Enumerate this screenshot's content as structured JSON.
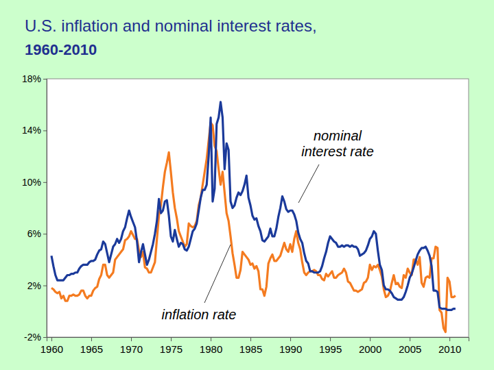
{
  "chart_data": {
    "type": "line",
    "title": "U.S. inflation and nominal interest rates, 1960-2010",
    "x": [
      1960,
      1960.25,
      1960.5,
      1960.75,
      1961,
      1961.25,
      1961.5,
      1961.75,
      1962,
      1962.25,
      1962.5,
      1962.75,
      1963,
      1963.25,
      1963.5,
      1963.75,
      1964,
      1964.25,
      1964.5,
      1964.75,
      1965,
      1965.25,
      1965.5,
      1965.75,
      1966,
      1966.25,
      1966.5,
      1966.75,
      1967,
      1967.25,
      1967.5,
      1967.75,
      1968,
      1968.25,
      1968.5,
      1968.75,
      1969,
      1969.25,
      1969.5,
      1969.75,
      1970,
      1970.25,
      1970.5,
      1970.75,
      1971,
      1971.25,
      1971.5,
      1971.75,
      1972,
      1972.25,
      1972.5,
      1972.75,
      1973,
      1973.25,
      1973.5,
      1973.75,
      1974,
      1974.25,
      1974.5,
      1974.75,
      1975,
      1975.25,
      1975.5,
      1975.75,
      1976,
      1976.25,
      1976.5,
      1976.75,
      1977,
      1977.25,
      1977.5,
      1977.75,
      1978,
      1978.25,
      1978.5,
      1978.75,
      1979,
      1979.25,
      1979.5,
      1979.75,
      1980,
      1980.25,
      1980.5,
      1980.75,
      1981,
      1981.25,
      1981.5,
      1981.75,
      1982,
      1982.25,
      1982.5,
      1982.75,
      1983,
      1983.25,
      1983.5,
      1983.75,
      1984,
      1984.25,
      1984.5,
      1984.75,
      1985,
      1985.25,
      1985.5,
      1985.75,
      1986,
      1986.25,
      1986.5,
      1986.75,
      1987,
      1987.25,
      1987.5,
      1987.75,
      1988,
      1988.25,
      1988.5,
      1988.75,
      1989,
      1989.25,
      1989.5,
      1989.75,
      1990,
      1990.25,
      1990.5,
      1990.75,
      1991,
      1991.25,
      1991.5,
      1991.75,
      1992,
      1992.25,
      1992.5,
      1992.75,
      1993,
      1993.25,
      1993.5,
      1993.75,
      1994,
      1994.25,
      1994.5,
      1994.75,
      1995,
      1995.25,
      1995.5,
      1995.75,
      1996,
      1996.25,
      1996.5,
      1996.75,
      1997,
      1997.25,
      1997.5,
      1997.75,
      1998,
      1998.25,
      1998.5,
      1998.75,
      1999,
      1999.25,
      1999.5,
      1999.75,
      2000,
      2000.25,
      2000.5,
      2000.75,
      2001,
      2001.25,
      2001.5,
      2001.75,
      2002,
      2002.25,
      2002.5,
      2002.75,
      2003,
      2003.25,
      2003.5,
      2003.75,
      2004,
      2004.25,
      2004.5,
      2004.75,
      2005,
      2005.25,
      2005.5,
      2005.75,
      2006,
      2006.25,
      2006.5,
      2006.75,
      2007,
      2007.25,
      2007.5,
      2007.75,
      2008,
      2008.25,
      2008.5,
      2008.75,
      2009,
      2009.25,
      2009.5,
      2009.75,
      2010,
      2010.25,
      2010.5,
      2010.75
    ],
    "series": [
      {
        "name": "nominal interest rate",
        "color": "#1b3a9a",
        "values": [
          4.3,
          3.5,
          2.8,
          2.4,
          2.4,
          2.4,
          2.4,
          2.6,
          2.8,
          2.8,
          2.9,
          2.9,
          3.0,
          3.0,
          3.3,
          3.5,
          3.6,
          3.6,
          3.6,
          3.8,
          3.9,
          3.9,
          4.0,
          4.4,
          4.7,
          4.8,
          5.4,
          5.2,
          4.5,
          3.8,
          4.4,
          5.0,
          5.2,
          5.6,
          5.3,
          5.6,
          6.2,
          6.5,
          7.2,
          7.8,
          7.3,
          6.9,
          6.5,
          5.4,
          3.8,
          4.6,
          5.2,
          4.4,
          3.6,
          4.0,
          4.6,
          5.2,
          6.0,
          7.0,
          8.7,
          7.6,
          7.8,
          8.5,
          8.6,
          7.4,
          5.8,
          5.4,
          6.3,
          5.6,
          5.0,
          5.3,
          5.2,
          4.8,
          4.7,
          5.0,
          5.6,
          6.2,
          6.4,
          6.8,
          7.8,
          8.8,
          9.4,
          9.4,
          9.8,
          12.0,
          15.0,
          8.5,
          9.5,
          14.5,
          15.0,
          16.2,
          15.0,
          11.0,
          13.0,
          12.5,
          8.5,
          8.0,
          8.2,
          8.8,
          9.2,
          9.0,
          9.3,
          9.8,
          10.5,
          8.8,
          8.2,
          7.4,
          7.1,
          7.2,
          6.6,
          6.2,
          5.5,
          5.4,
          5.6,
          5.8,
          6.4,
          5.8,
          5.8,
          6.4,
          7.3,
          8.0,
          8.9,
          8.5,
          7.9,
          7.7,
          7.8,
          7.8,
          7.5,
          7.0,
          6.1,
          5.6,
          5.3,
          4.5,
          3.9,
          3.7,
          3.1,
          3.1,
          3.0,
          3.0,
          3.0,
          3.1,
          3.5,
          4.1,
          4.6,
          5.3,
          5.8,
          5.6,
          5.4,
          5.3,
          5.0,
          5.0,
          5.1,
          5.0,
          5.1,
          5.1,
          5.0,
          5.1,
          5.0,
          5.0,
          4.8,
          4.3,
          4.4,
          4.5,
          4.7,
          5.1,
          5.6,
          5.8,
          6.2,
          6.0,
          4.7,
          3.6,
          3.2,
          2.0,
          1.7,
          1.7,
          1.6,
          1.4,
          1.1,
          1.0,
          0.9,
          0.9,
          0.9,
          1.1,
          1.5,
          2.0,
          2.6,
          2.9,
          3.4,
          3.9,
          4.4,
          4.7,
          4.9,
          4.9,
          5.0,
          4.7,
          4.3,
          3.5,
          1.6,
          1.6,
          1.5,
          0.3,
          0.2,
          0.2,
          0.2,
          0.1,
          0.1,
          0.1,
          0.2,
          0.2
        ]
      },
      {
        "name": "inflation rate",
        "color": "#f47b20",
        "values": [
          1.8,
          1.7,
          1.5,
          1.4,
          1.5,
          1.0,
          1.2,
          0.8,
          0.8,
          1.2,
          1.2,
          1.3,
          1.2,
          1.2,
          1.3,
          1.6,
          1.6,
          1.2,
          1.0,
          1.2,
          1.2,
          1.6,
          1.8,
          1.9,
          2.5,
          2.8,
          3.6,
          3.6,
          2.8,
          2.6,
          2.8,
          3.0,
          4.0,
          4.2,
          4.4,
          4.6,
          4.8,
          5.5,
          5.6,
          5.8,
          6.2,
          5.9,
          5.6,
          5.6,
          4.7,
          4.2,
          4.6,
          3.4,
          3.3,
          3.0,
          3.0,
          3.4,
          3.8,
          5.6,
          7.4,
          8.2,
          9.6,
          10.8,
          11.5,
          12.3,
          10.8,
          9.2,
          8.0,
          7.2,
          6.2,
          5.8,
          5.4,
          5.0,
          5.2,
          6.8,
          6.6,
          6.5,
          6.6,
          7.0,
          8.2,
          8.8,
          9.8,
          10.8,
          11.8,
          13.2,
          14.6,
          14.4,
          12.8,
          12.4,
          11.0,
          9.8,
          10.8,
          9.2,
          7.6,
          7.0,
          5.8,
          4.5,
          3.6,
          2.6,
          2.6,
          3.2,
          4.6,
          4.4,
          4.2,
          4.0,
          3.6,
          3.7,
          3.3,
          3.5,
          3.1,
          1.7,
          1.7,
          1.2,
          1.9,
          3.7,
          4.1,
          4.4,
          3.9,
          3.9,
          4.1,
          4.3,
          4.8,
          5.3,
          4.8,
          4.6,
          5.2,
          4.6,
          5.6,
          6.2,
          5.3,
          4.8,
          3.8,
          3.0,
          2.8,
          3.0,
          3.1,
          3.1,
          3.2,
          3.1,
          2.8,
          2.8,
          2.5,
          2.4,
          2.9,
          2.7,
          2.9,
          3.1,
          2.6,
          2.6,
          2.8,
          2.9,
          3.0,
          3.3,
          3.0,
          2.3,
          2.2,
          1.9,
          1.6,
          1.6,
          1.5,
          1.6,
          1.7,
          2.2,
          2.3,
          2.6,
          3.6,
          3.2,
          3.5,
          3.4,
          3.6,
          3.2,
          2.7,
          1.7,
          1.1,
          1.2,
          1.5,
          2.2,
          2.8,
          2.1,
          2.2,
          1.9,
          1.8,
          2.8,
          2.6,
          3.3,
          3.0,
          2.8,
          4.0,
          4.0,
          3.6,
          4.2,
          2.2,
          1.9,
          2.6,
          2.7,
          2.6,
          4.1,
          4.1,
          5.0,
          4.9,
          0.1,
          -0.1,
          -1.3,
          -1.6,
          2.6,
          2.3,
          1.1,
          1.1,
          1.2
        ]
      }
    ],
    "xlim": [
      1959.4,
      2012.4
    ],
    "xticks": [
      1960,
      1965,
      1970,
      1975,
      1980,
      1985,
      1990,
      1995,
      2000,
      2005,
      2010
    ],
    "ylim": [
      -2,
      18
    ],
    "yticks": [
      {
        "value": -2,
        "label": "-2%"
      },
      {
        "value": 2,
        "label": "2%"
      },
      {
        "value": 6,
        "label": "6%"
      },
      {
        "value": 10,
        "label": "10%"
      },
      {
        "value": 14,
        "label": "14%"
      },
      {
        "value": 18,
        "label": "18%"
      }
    ],
    "grid": false
  }
}
